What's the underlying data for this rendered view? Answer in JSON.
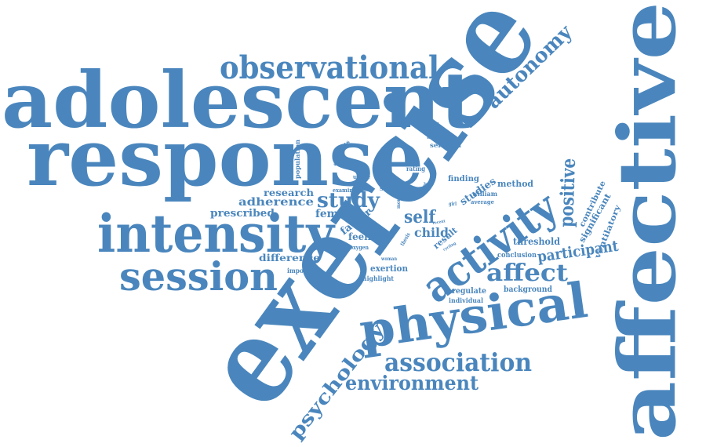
{
  "palette": {
    "word_color": "#4a86bd",
    "background": "#ffffff"
  },
  "words": [
    "adolescent",
    "response",
    "exercise",
    "affective",
    "intensity",
    "physical",
    "observational",
    "session",
    "activity",
    "association",
    "autonomy",
    "affect",
    "environment",
    "psychology",
    "positive",
    "participant",
    "study",
    "self",
    "adherence",
    "child",
    "research",
    "female",
    "factor",
    "prescribed",
    "difference",
    "feeling",
    "threshold",
    "exertion",
    "significant",
    "contribute",
    "ventilatory",
    "result",
    "finding",
    "studies",
    "method",
    "william",
    "regulate",
    "background",
    "conclusion",
    "individual",
    "important",
    "highlight",
    "scale",
    "examine",
    "population",
    "ekkekakis",
    "uptake",
    "rating",
    "selected",
    "treadmill",
    "average",
    "oxygen",
    "woman",
    "thesis",
    "cycling",
    "girl",
    "good",
    "more",
    "recent"
  ]
}
